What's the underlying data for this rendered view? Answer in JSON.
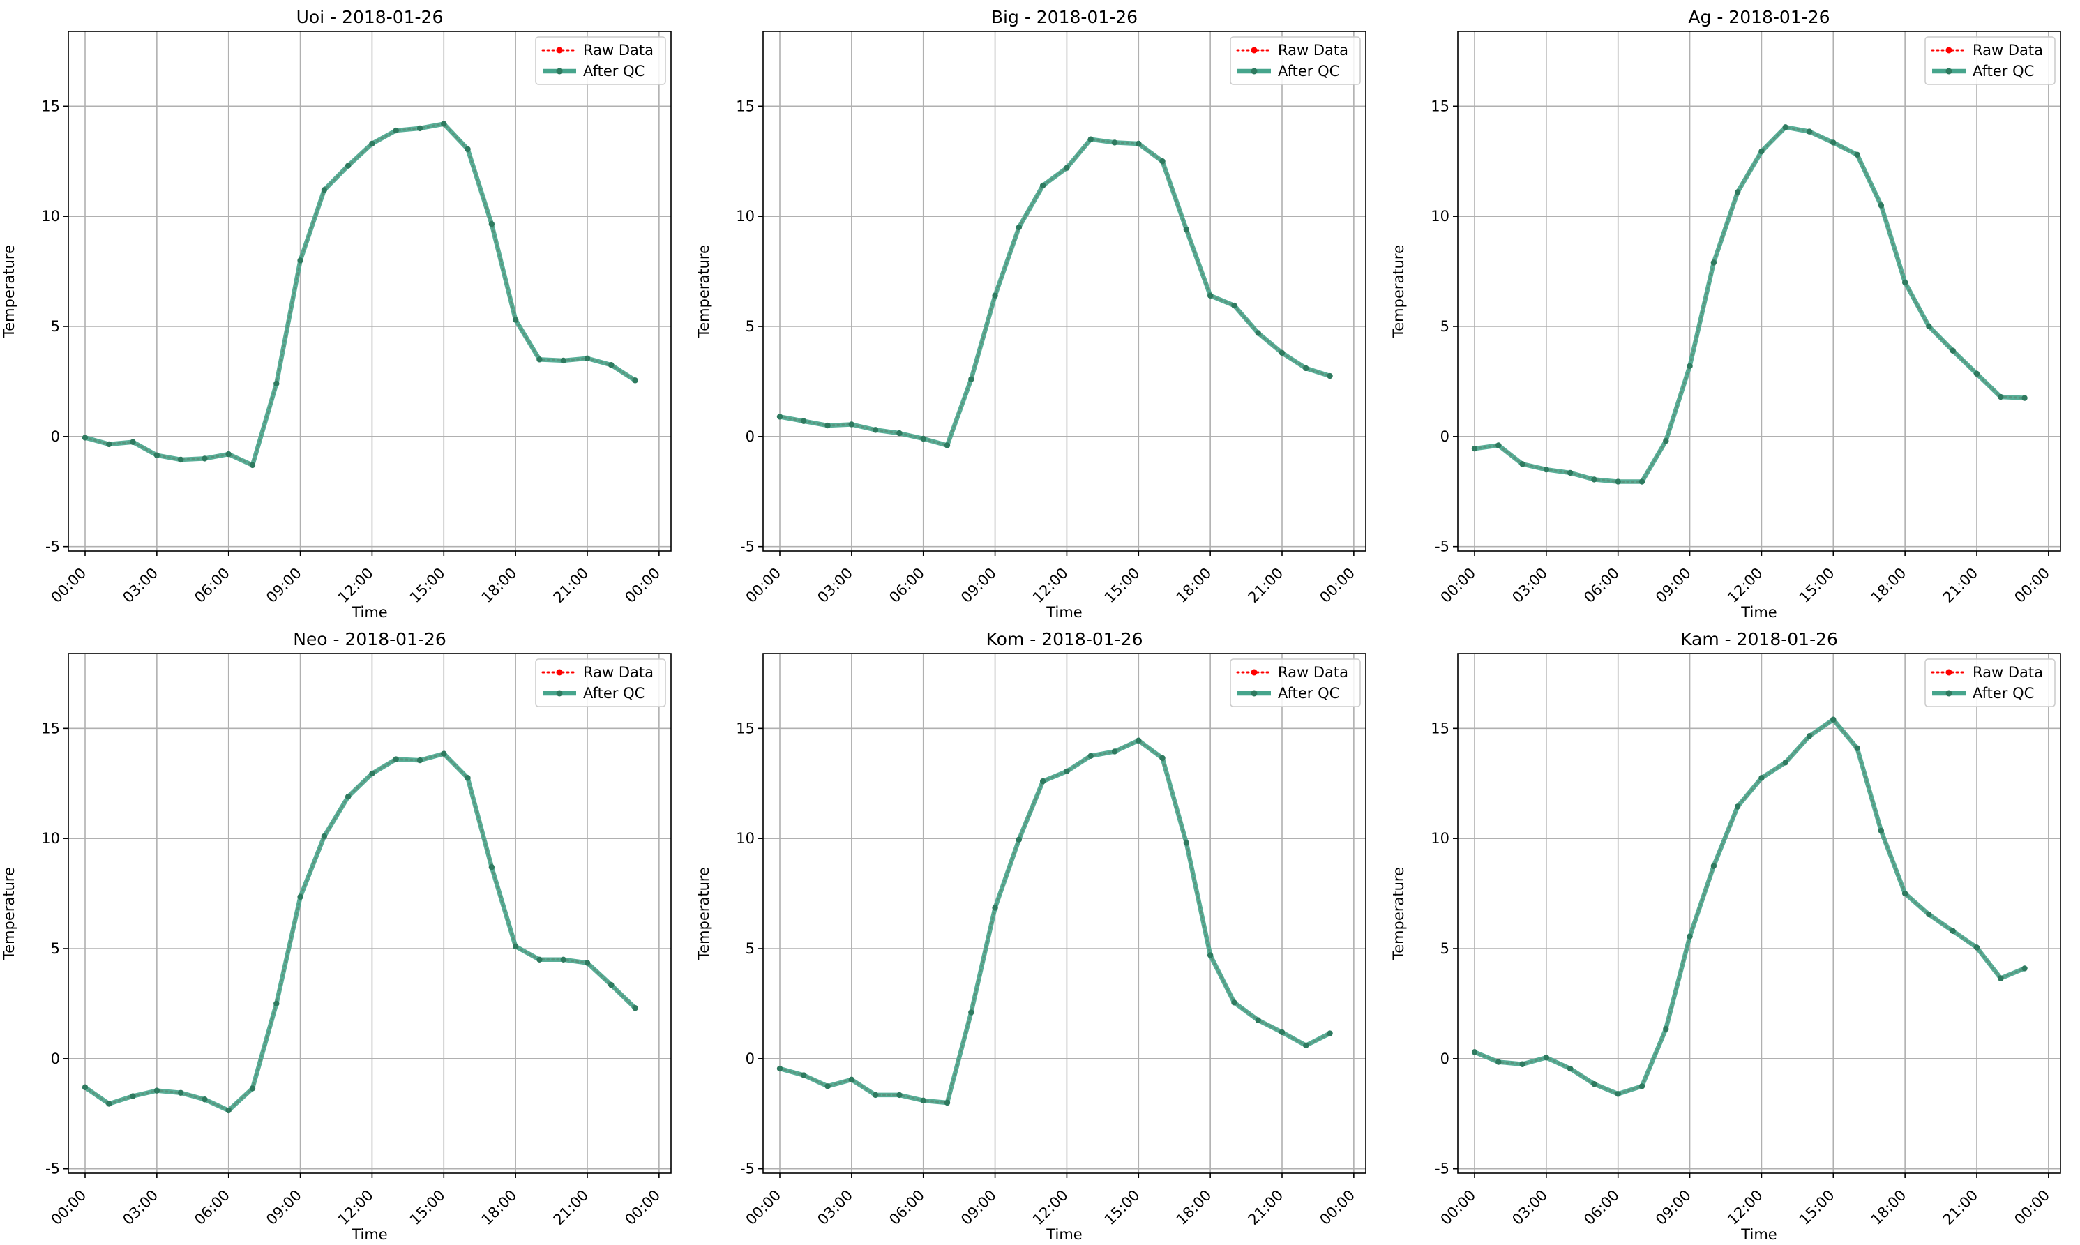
{
  "figure": {
    "colors": {
      "raw": "#ff0000",
      "qc_line": "#46a58c",
      "qc_marker": "#2e7a5f",
      "grid": "#b0b0b0",
      "axis": "#000000"
    }
  },
  "chart_data": [
    {
      "type": "line",
      "title": "Uoi - 2018-01-26",
      "xlabel": "Time",
      "ylabel": "Temperature",
      "x_ticks": [
        "00:00",
        "03:00",
        "06:00",
        "09:00",
        "12:00",
        "15:00",
        "18:00",
        "21:00",
        "00:00"
      ],
      "y_ticks": [
        -5,
        0,
        5,
        10,
        15
      ],
      "x": [
        "00:00",
        "01:00",
        "02:00",
        "03:00",
        "04:00",
        "05:00",
        "06:00",
        "07:00",
        "08:00",
        "09:00",
        "10:00",
        "11:00",
        "12:00",
        "13:00",
        "14:00",
        "15:00",
        "16:00",
        "17:00",
        "18:00",
        "19:00",
        "20:00",
        "21:00",
        "22:00",
        "23:00"
      ],
      "ylim": [
        -5.2,
        18.4
      ],
      "grid": true,
      "legend_position": "top-right",
      "legend": [
        "Raw Data",
        "After QC"
      ],
      "series": [
        {
          "name": "Raw Data",
          "values": [
            -0.05,
            -0.35,
            -0.25,
            -0.85,
            -1.05,
            -1.0,
            -0.8,
            -1.3,
            2.4,
            8.0,
            11.2,
            12.3,
            13.3,
            13.9,
            14.0,
            14.2,
            13.05,
            9.65,
            5.3,
            3.5,
            3.45,
            3.55,
            3.25,
            2.55
          ]
        },
        {
          "name": "After QC",
          "values": [
            -0.05,
            -0.35,
            -0.25,
            -0.85,
            -1.05,
            -1.0,
            -0.8,
            -1.3,
            2.4,
            8.0,
            11.2,
            12.3,
            13.3,
            13.9,
            14.0,
            14.2,
            13.05,
            9.65,
            5.3,
            3.5,
            3.45,
            3.55,
            3.25,
            2.55
          ]
        }
      ]
    },
    {
      "type": "line",
      "title": "Big - 2018-01-26",
      "xlabel": "Time",
      "ylabel": "Temperature",
      "x_ticks": [
        "00:00",
        "03:00",
        "06:00",
        "09:00",
        "12:00",
        "15:00",
        "18:00",
        "21:00",
        "00:00"
      ],
      "y_ticks": [
        -5,
        0,
        5,
        10,
        15
      ],
      "x": [
        "00:00",
        "01:00",
        "02:00",
        "03:00",
        "04:00",
        "05:00",
        "06:00",
        "07:00",
        "08:00",
        "09:00",
        "10:00",
        "11:00",
        "12:00",
        "13:00",
        "14:00",
        "15:00",
        "16:00",
        "17:00",
        "18:00",
        "19:00",
        "20:00",
        "21:00",
        "22:00",
        "23:00"
      ],
      "ylim": [
        -5.2,
        18.4
      ],
      "grid": true,
      "legend_position": "top-right",
      "legend": [
        "Raw Data",
        "After QC"
      ],
      "series": [
        {
          "name": "Raw Data",
          "values": [
            0.9,
            0.7,
            0.5,
            0.55,
            0.3,
            0.15,
            -0.1,
            -0.4,
            2.6,
            6.4,
            9.5,
            11.4,
            12.2,
            13.5,
            13.35,
            13.3,
            12.5,
            9.4,
            6.4,
            5.95,
            4.7,
            3.8,
            3.1,
            2.75
          ]
        },
        {
          "name": "After QC",
          "values": [
            0.9,
            0.7,
            0.5,
            0.55,
            0.3,
            0.15,
            -0.1,
            -0.4,
            2.6,
            6.4,
            9.5,
            11.4,
            12.2,
            13.5,
            13.35,
            13.3,
            12.5,
            9.4,
            6.4,
            5.95,
            4.7,
            3.8,
            3.1,
            2.75
          ]
        }
      ]
    },
    {
      "type": "line",
      "title": "Ag - 2018-01-26",
      "xlabel": "Time",
      "ylabel": "Temperature",
      "x_ticks": [
        "00:00",
        "03:00",
        "06:00",
        "09:00",
        "12:00",
        "15:00",
        "18:00",
        "21:00",
        "00:00"
      ],
      "y_ticks": [
        -5,
        0,
        5,
        10,
        15
      ],
      "x": [
        "00:00",
        "01:00",
        "02:00",
        "03:00",
        "04:00",
        "05:00",
        "06:00",
        "07:00",
        "08:00",
        "09:00",
        "10:00",
        "11:00",
        "12:00",
        "13:00",
        "14:00",
        "15:00",
        "16:00",
        "17:00",
        "18:00",
        "19:00",
        "20:00",
        "21:00",
        "22:00",
        "23:00"
      ],
      "ylim": [
        -5.2,
        18.4
      ],
      "grid": true,
      "legend_position": "top-right",
      "legend": [
        "Raw Data",
        "After QC"
      ],
      "series": [
        {
          "name": "Raw Data",
          "values": [
            -0.55,
            -0.4,
            -1.25,
            -1.5,
            -1.65,
            -1.95,
            -2.05,
            -2.05,
            -0.2,
            3.2,
            7.9,
            11.1,
            12.95,
            14.05,
            13.85,
            13.35,
            12.8,
            10.5,
            7.0,
            5.0,
            3.9,
            2.85,
            1.8,
            1.75
          ]
        },
        {
          "name": "After QC",
          "values": [
            -0.55,
            -0.4,
            -1.25,
            -1.5,
            -1.65,
            -1.95,
            -2.05,
            -2.05,
            -0.2,
            3.2,
            7.9,
            11.1,
            12.95,
            14.05,
            13.85,
            13.35,
            12.8,
            10.5,
            7.0,
            5.0,
            3.9,
            2.85,
            1.8,
            1.75
          ]
        }
      ]
    },
    {
      "type": "line",
      "title": "Neo - 2018-01-26",
      "xlabel": "Time",
      "ylabel": "Temperature",
      "x_ticks": [
        "00:00",
        "03:00",
        "06:00",
        "09:00",
        "12:00",
        "15:00",
        "18:00",
        "21:00",
        "00:00"
      ],
      "y_ticks": [
        -5,
        0,
        5,
        10,
        15
      ],
      "x": [
        "00:00",
        "01:00",
        "02:00",
        "03:00",
        "04:00",
        "05:00",
        "06:00",
        "07:00",
        "08:00",
        "09:00",
        "10:00",
        "11:00",
        "12:00",
        "13:00",
        "14:00",
        "15:00",
        "16:00",
        "17:00",
        "18:00",
        "19:00",
        "20:00",
        "21:00",
        "22:00",
        "23:00"
      ],
      "ylim": [
        -5.2,
        18.4
      ],
      "grid": true,
      "legend_position": "top-right",
      "legend": [
        "Raw Data",
        "After QC"
      ],
      "series": [
        {
          "name": "Raw Data",
          "values": [
            -1.3,
            -2.05,
            -1.7,
            -1.45,
            -1.55,
            -1.85,
            -2.35,
            -1.35,
            2.5,
            7.35,
            10.1,
            11.9,
            12.95,
            13.6,
            13.55,
            13.85,
            12.75,
            8.7,
            5.1,
            4.5,
            4.5,
            4.35,
            3.35,
            2.3
          ]
        },
        {
          "name": "After QC",
          "values": [
            -1.3,
            -2.05,
            -1.7,
            -1.45,
            -1.55,
            -1.85,
            -2.35,
            -1.35,
            2.5,
            7.35,
            10.1,
            11.9,
            12.95,
            13.6,
            13.55,
            13.85,
            12.75,
            8.7,
            5.1,
            4.5,
            4.5,
            4.35,
            3.35,
            2.3
          ]
        }
      ]
    },
    {
      "type": "line",
      "title": "Kom - 2018-01-26",
      "xlabel": "Time",
      "ylabel": "Temperature",
      "x_ticks": [
        "00:00",
        "03:00",
        "06:00",
        "09:00",
        "12:00",
        "15:00",
        "18:00",
        "21:00",
        "00:00"
      ],
      "y_ticks": [
        -5,
        0,
        5,
        10,
        15
      ],
      "x": [
        "00:00",
        "01:00",
        "02:00",
        "03:00",
        "04:00",
        "05:00",
        "06:00",
        "07:00",
        "08:00",
        "09:00",
        "10:00",
        "11:00",
        "12:00",
        "13:00",
        "14:00",
        "15:00",
        "16:00",
        "17:00",
        "18:00",
        "19:00",
        "20:00",
        "21:00",
        "22:00",
        "23:00"
      ],
      "ylim": [
        -5.2,
        18.4
      ],
      "grid": true,
      "legend_position": "top-right",
      "legend": [
        "Raw Data",
        "After QC"
      ],
      "series": [
        {
          "name": "Raw Data",
          "values": [
            -0.45,
            -0.75,
            -1.25,
            -0.95,
            -1.65,
            -1.65,
            -1.9,
            -2.0,
            2.1,
            6.85,
            9.95,
            12.6,
            13.05,
            13.75,
            13.95,
            14.45,
            13.65,
            9.8,
            4.7,
            2.55,
            1.75,
            1.2,
            0.6,
            1.15
          ]
        },
        {
          "name": "After QC",
          "values": [
            -0.45,
            -0.75,
            -1.25,
            -0.95,
            -1.65,
            -1.65,
            -1.9,
            -2.0,
            2.1,
            6.85,
            9.95,
            12.6,
            13.05,
            13.75,
            13.95,
            14.45,
            13.65,
            9.8,
            4.7,
            2.55,
            1.75,
            1.2,
            0.6,
            1.15
          ]
        }
      ]
    },
    {
      "type": "line",
      "title": "Kam - 2018-01-26",
      "xlabel": "Time",
      "ylabel": "Temperature",
      "x_ticks": [
        "00:00",
        "03:00",
        "06:00",
        "09:00",
        "12:00",
        "15:00",
        "18:00",
        "21:00",
        "00:00"
      ],
      "y_ticks": [
        -5,
        0,
        5,
        10,
        15
      ],
      "x": [
        "00:00",
        "01:00",
        "02:00",
        "03:00",
        "04:00",
        "05:00",
        "06:00",
        "07:00",
        "08:00",
        "09:00",
        "10:00",
        "11:00",
        "12:00",
        "13:00",
        "14:00",
        "15:00",
        "16:00",
        "17:00",
        "18:00",
        "19:00",
        "20:00",
        "21:00",
        "22:00",
        "23:00"
      ],
      "ylim": [
        -5.2,
        18.4
      ],
      "grid": true,
      "legend_position": "top-right",
      "legend": [
        "Raw Data",
        "After QC"
      ],
      "series": [
        {
          "name": "Raw Data",
          "values": [
            0.3,
            -0.15,
            -0.25,
            0.05,
            -0.45,
            -1.15,
            -1.6,
            -1.25,
            1.35,
            5.55,
            8.75,
            11.45,
            12.75,
            13.45,
            14.65,
            15.4,
            14.1,
            10.35,
            7.5,
            6.55,
            5.8,
            5.05,
            3.65,
            4.1
          ]
        },
        {
          "name": "After QC",
          "values": [
            0.3,
            -0.15,
            -0.25,
            0.05,
            -0.45,
            -1.15,
            -1.6,
            -1.25,
            1.35,
            5.55,
            8.75,
            11.45,
            12.75,
            13.45,
            14.65,
            15.4,
            14.1,
            10.35,
            7.5,
            6.55,
            5.8,
            5.05,
            3.65,
            4.1
          ]
        }
      ]
    }
  ]
}
